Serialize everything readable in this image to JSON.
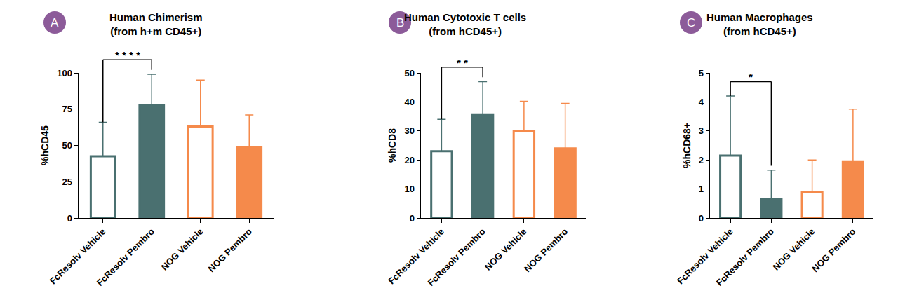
{
  "chart_data": [
    {
      "type": "bar",
      "panel_label": "A",
      "title": "Human Chimerism",
      "subtitle": "(from h+m CD45+)",
      "y_label": "%hCD45",
      "categories": [
        "FcResolv Vehicle",
        "FcResolv Pembro",
        "NOG Vehicle",
        "NOG Pembro"
      ],
      "values": [
        42.5,
        78,
        63,
        48.5
      ],
      "errors": [
        23.5,
        21,
        32,
        22.5
      ],
      "colors": [
        "#4a7070",
        "#4a7070",
        "#f58a4b",
        "#f58a4b"
      ],
      "ylim": [
        0,
        100
      ],
      "yticks": [
        0,
        25,
        50,
        75,
        100
      ],
      "grid": false,
      "significance": {
        "from": 0,
        "to": 1,
        "label": "* * * *"
      }
    },
    {
      "type": "bar",
      "panel_label": "B",
      "title": "Human Cytotoxic T cells",
      "subtitle": "(from hCD45+)",
      "y_label": "%hCD8",
      "categories": [
        "FcResolv Vehicle",
        "FcResolv Pembro",
        "NOG Vehicle",
        "NOG Pembro"
      ],
      "values": [
        23,
        35.7,
        30,
        24
      ],
      "errors": [
        11,
        11.3,
        10.2,
        15.5
      ],
      "colors": [
        "#4a7070",
        "#4a7070",
        "#f58a4b",
        "#f58a4b"
      ],
      "ylim": [
        0,
        50
      ],
      "yticks": [
        0,
        10,
        20,
        30,
        40,
        50
      ],
      "grid": false,
      "significance": {
        "from": 0,
        "to": 1,
        "label": "* *"
      }
    },
    {
      "type": "bar",
      "panel_label": "C",
      "title": "Human Macrophages",
      "subtitle": "(from hCD45+)",
      "y_label": "%hCD68+",
      "categories": [
        "FcResolv Vehicle",
        "FcResolv Pembro",
        "NOG Vehicle",
        "NOG Pembro"
      ],
      "values": [
        2.15,
        0.65,
        0.9,
        1.95
      ],
      "errors": [
        2.05,
        1.0,
        1.1,
        1.8
      ],
      "colors": [
        "#4a7070",
        "#4a7070",
        "#f58a4b",
        "#f58a4b"
      ],
      "ylim": [
        0,
        5
      ],
      "yticks": [
        0,
        1,
        2,
        3,
        4,
        5
      ],
      "grid": false,
      "significance": {
        "from": 0,
        "to": 1,
        "label": "*"
      }
    }
  ]
}
